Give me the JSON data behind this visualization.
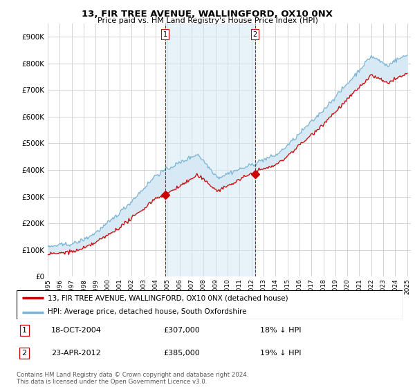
{
  "title1": "13, FIR TREE AVENUE, WALLINGFORD, OX10 0NX",
  "title2": "Price paid vs. HM Land Registry's House Price Index (HPI)",
  "ylim": [
    0,
    950000
  ],
  "yticks": [
    0,
    100000,
    200000,
    300000,
    400000,
    500000,
    600000,
    700000,
    800000,
    900000
  ],
  "legend_line1": "13, FIR TREE AVENUE, WALLINGFORD, OX10 0NX (detached house)",
  "legend_line2": "HPI: Average price, detached house, South Oxfordshire",
  "transaction1_date": "18-OCT-2004",
  "transaction1_price": "£307,000",
  "transaction1_hpi": "18% ↓ HPI",
  "transaction2_date": "23-APR-2012",
  "transaction2_price": "£385,000",
  "transaction2_hpi": "19% ↓ HPI",
  "footer": "Contains HM Land Registry data © Crown copyright and database right 2024.\nThis data is licensed under the Open Government Licence v3.0.",
  "hpi_color": "#7ab3d4",
  "price_color": "#cc0000",
  "fill_color": "#d6e9f5",
  "marker1_x": 2004.8,
  "marker1_y": 307000,
  "marker2_x": 2012.3,
  "marker2_y": 385000,
  "background_color": "#ffffff",
  "grid_color": "#cccccc",
  "xmin": 1995,
  "xmax": 2025.3
}
